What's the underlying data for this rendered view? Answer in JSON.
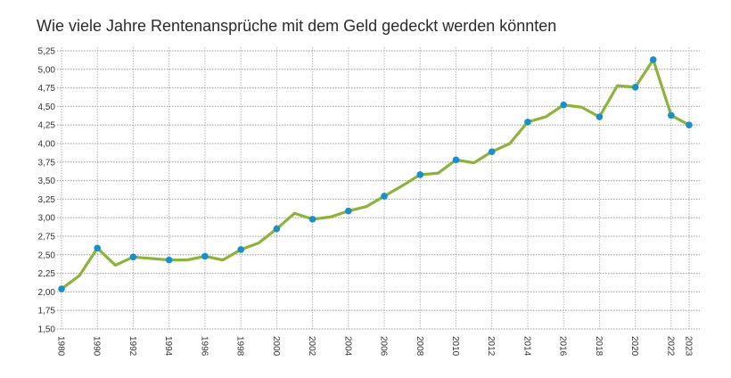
{
  "chart_data": {
    "type": "line",
    "title": "Wie viele Jahre Rentenansprüche mit dem Geld gedeckt werden könnten",
    "xlabel": "",
    "ylabel": "",
    "ylim": [
      1.5,
      5.25
    ],
    "yticks": [
      "1,50",
      "1,75",
      "2,00",
      "2,25",
      "2,50",
      "2,75",
      "3,00",
      "3,25",
      "3,50",
      "3,75",
      "4,00",
      "4,25",
      "4,50",
      "4,75",
      "5,00",
      "5,25"
    ],
    "grid": true,
    "categories": [
      "1980",
      "",
      "1990",
      "",
      "1992",
      "",
      "1994",
      "",
      "1996",
      "",
      "1998",
      "",
      "2000",
      "",
      "2002",
      "",
      "2004",
      "",
      "2006",
      "",
      "2008",
      "",
      "2010",
      "",
      "2012",
      "",
      "2014",
      "",
      "2016",
      "",
      "2018",
      "",
      "2020",
      "",
      "2022",
      "2023"
    ],
    "values": [
      2.04,
      2.22,
      2.59,
      2.36,
      2.47,
      2.45,
      2.43,
      2.43,
      2.48,
      2.43,
      2.57,
      2.66,
      2.85,
      3.06,
      2.98,
      3.01,
      3.09,
      3.15,
      3.29,
      3.43,
      3.58,
      3.6,
      3.78,
      3.74,
      3.89,
      4.0,
      4.29,
      4.36,
      4.52,
      4.49,
      4.36,
      4.78,
      4.76,
      5.13,
      4.38,
      4.25
    ],
    "markers": [
      true,
      false,
      true,
      false,
      true,
      false,
      true,
      false,
      true,
      false,
      true,
      false,
      true,
      false,
      true,
      false,
      true,
      false,
      true,
      false,
      true,
      false,
      true,
      false,
      true,
      false,
      true,
      false,
      true,
      false,
      true,
      false,
      true,
      true,
      true,
      true
    ],
    "line_color": "#8cb33a",
    "marker_color": "#1b8fc9",
    "grid_color": "#b5b5b5"
  }
}
